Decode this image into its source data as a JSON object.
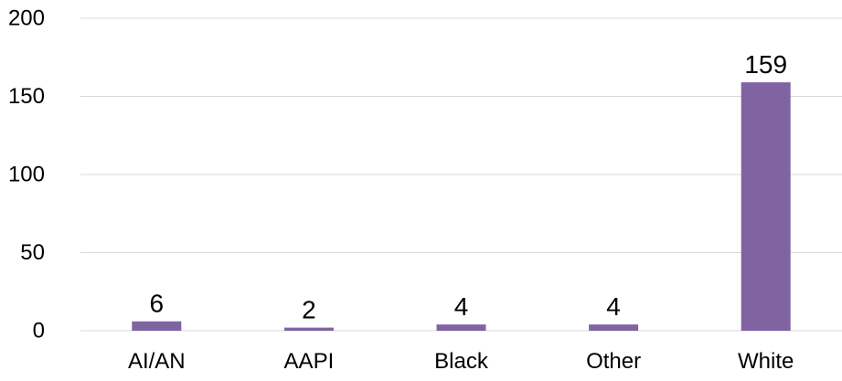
{
  "chart_data": {
    "type": "bar",
    "categories": [
      "AI/AN",
      "AAPI",
      "Black",
      "Other",
      "White"
    ],
    "values": [
      6,
      2,
      4,
      4,
      159
    ],
    "data_labels": [
      "6",
      "2",
      "4",
      "4",
      "159"
    ],
    "title": "",
    "xlabel": "",
    "ylabel": "",
    "ylim": [
      0,
      200
    ],
    "yticks": [
      0,
      50,
      100,
      150,
      200
    ],
    "ytick_labels": [
      "0",
      "50",
      "100",
      "150",
      "200"
    ],
    "grid": true,
    "legend": "none",
    "bar_color": "#8064a2"
  }
}
